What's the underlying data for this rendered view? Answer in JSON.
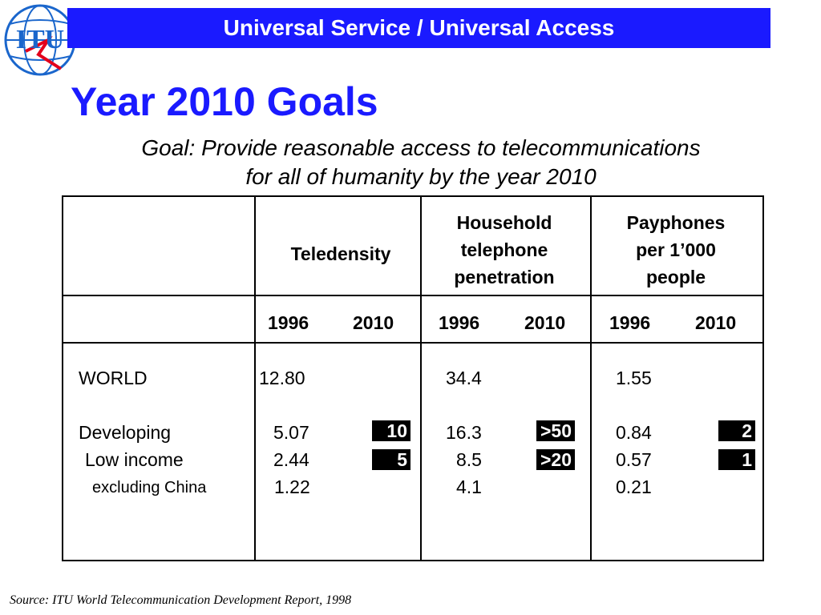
{
  "logo_text": "ITU",
  "banner": "Universal Service / Universal Access",
  "title": "Year 2010 Goals",
  "subtitle_line1": "Goal: Provide reasonable access to telecommunications",
  "subtitle_line2": "for all of humanity by the year 2010",
  "table": {
    "headers": {
      "teledensity": "Teledensity",
      "household_1": "Household",
      "household_2": "telephone",
      "household_3": "penetration",
      "payphones_1": "Payphones",
      "payphones_2": "per 1’000",
      "payphones_3": "people"
    },
    "years": {
      "tele_1996": "1996",
      "tele_2010": "2010",
      "hh_1996": "1996",
      "hh_2010": "2010",
      "pay_1996": "1996",
      "pay_2010": "2010"
    },
    "rows": [
      {
        "label": "WORLD",
        "tele_1996": "12.80",
        "tele_2010": "",
        "hh_1996": "34.4",
        "hh_2010": "",
        "pay_1996": "1.55",
        "pay_2010": ""
      },
      {
        "label": "Developing",
        "tele_1996": "5.07",
        "tele_2010": "10",
        "hh_1996": "16.3",
        "hh_2010": ">50",
        "pay_1996": "0.84",
        "pay_2010": "2"
      },
      {
        "label": "Low income",
        "tele_1996": "2.44",
        "tele_2010": "5",
        "hh_1996": "8.5",
        "hh_2010": ">20",
        "pay_1996": "0.57",
        "pay_2010": "1"
      },
      {
        "label": "excluding China",
        "tele_1996": "1.22",
        "tele_2010": "",
        "hh_1996": "4.1",
        "hh_2010": "",
        "pay_1996": "0.21",
        "pay_2010": ""
      }
    ]
  },
  "source": "Source: ITU World Telecommunication Development Report, 1998",
  "colors": {
    "accent_blue": "#1a1aff",
    "logo_red": "#e3001b"
  }
}
